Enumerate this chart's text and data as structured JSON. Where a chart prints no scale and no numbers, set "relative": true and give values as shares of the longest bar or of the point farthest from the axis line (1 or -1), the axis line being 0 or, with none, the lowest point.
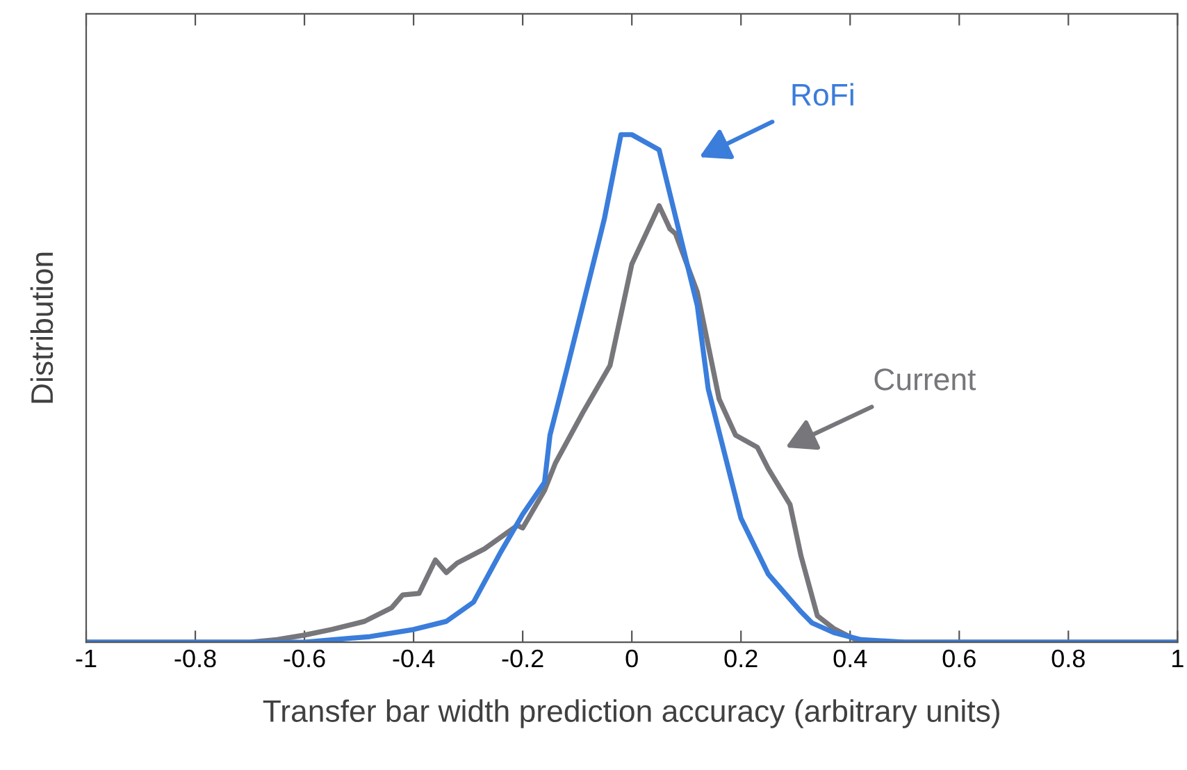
{
  "chart_data": {
    "type": "line",
    "xlabel": "Transfer bar width prediction accuracy (arbitrary units)",
    "ylabel": "Distribution",
    "relative": true,
    "xlim": [
      -1,
      1
    ],
    "xticks": [
      -1,
      -0.8,
      -0.6,
      -0.4,
      -0.2,
      0,
      0.2,
      0.4,
      0.6,
      0.8,
      1
    ],
    "tick_labels": "x",
    "grid": false,
    "legend": false,
    "series": [
      {
        "name": "Current",
        "color": "#76767b",
        "x": [
          -1,
          -0.7,
          -0.65,
          -0.6,
          -0.55,
          -0.49,
          -0.44,
          -0.42,
          -0.39,
          -0.36,
          -0.34,
          -0.32,
          -0.27,
          -0.21,
          -0.2,
          -0.16,
          -0.14,
          -0.09,
          -0.04,
          0.0,
          0.05,
          0.07,
          0.08,
          0.12,
          0.16,
          0.19,
          0.23,
          0.25,
          0.29,
          0.31,
          0.34,
          0.37,
          0.41,
          0.47,
          1
        ],
        "values": [
          0,
          0,
          0.005,
          0.014,
          0.025,
          0.041,
          0.068,
          0.093,
          0.096,
          0.162,
          0.137,
          0.156,
          0.184,
          0.23,
          0.225,
          0.299,
          0.353,
          0.452,
          0.545,
          0.745,
          0.86,
          0.814,
          0.805,
          0.69,
          0.479,
          0.408,
          0.384,
          0.342,
          0.271,
          0.17,
          0.052,
          0.027,
          0.005,
          0,
          0
        ]
      },
      {
        "name": "RoFi",
        "color": "#3a7ddb",
        "x": [
          -1,
          -0.6,
          -0.48,
          -0.4,
          -0.34,
          -0.29,
          -0.24,
          -0.2,
          -0.16,
          -0.15,
          -0.12,
          -0.09,
          -0.06,
          -0.05,
          -0.02,
          0.0,
          0.05,
          0.12,
          0.14,
          0.2,
          0.25,
          0.31,
          0.33,
          0.37,
          0.42,
          0.5,
          1
        ],
        "values": [
          0,
          0,
          0.011,
          0.025,
          0.041,
          0.079,
          0.178,
          0.252,
          0.315,
          0.408,
          0.534,
          0.663,
          0.792,
          0.836,
          1.0,
          1.0,
          0.97,
          0.663,
          0.499,
          0.244,
          0.134,
          0.06,
          0.038,
          0.019,
          0.005,
          0,
          0
        ]
      }
    ]
  }
}
